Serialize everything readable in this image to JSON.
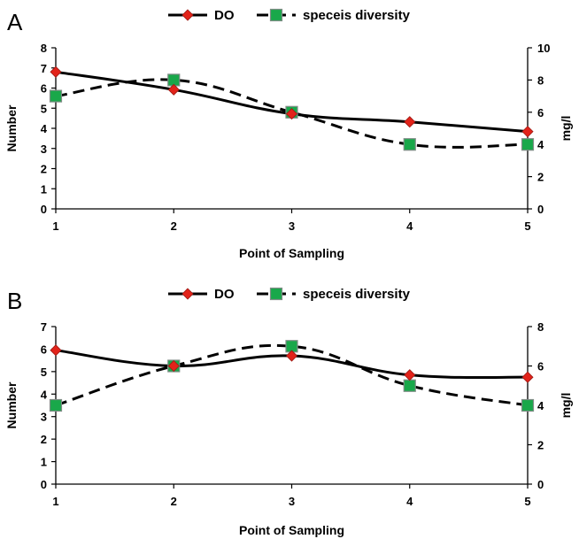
{
  "chart_data": [
    {
      "type": "line",
      "panel_label": "A",
      "x": [
        1,
        2,
        3,
        4,
        5
      ],
      "xlabel": "Point of Sampling",
      "ylabel": "Number",
      "y2label": "mg/l",
      "ylim": [
        0,
        8
      ],
      "y2lim": [
        0,
        10
      ],
      "yticks": [
        0,
        1,
        2,
        3,
        4,
        5,
        6,
        7,
        8
      ],
      "y2ticks": [
        0,
        2,
        4,
        6,
        8,
        10
      ],
      "legend_position": "top",
      "series": [
        {
          "name": "DO",
          "axis": "right",
          "values": [
            8.5,
            7.4,
            5.9,
            5.4,
            4.8
          ],
          "color": "#000000",
          "marker": "diamond",
          "marker_color": "#e2231a",
          "dash": "solid"
        },
        {
          "name": "speceis diversity",
          "axis": "left",
          "values": [
            5.6,
            6.4,
            4.8,
            3.2,
            3.2
          ],
          "color": "#000000",
          "marker": "square",
          "marker_color": "#19a84a",
          "dash": "dashed"
        }
      ]
    },
    {
      "type": "line",
      "panel_label": "B",
      "x": [
        1,
        2,
        3,
        4,
        5
      ],
      "xlabel": "Point of Sampling",
      "ylabel": "Number",
      "y2label": "mg/l",
      "ylim": [
        0,
        7
      ],
      "y2lim": [
        0,
        8
      ],
      "yticks": [
        0,
        1,
        2,
        3,
        4,
        5,
        6,
        7
      ],
      "y2ticks": [
        0,
        2,
        4,
        6,
        8
      ],
      "legend_position": "top",
      "series": [
        {
          "name": "DO",
          "axis": "left",
          "values": [
            5.95,
            5.25,
            5.7,
            4.85,
            4.75
          ],
          "color": "#000000",
          "marker": "diamond",
          "marker_color": "#e2231a",
          "dash": "solid"
        },
        {
          "name": "speceis diversity",
          "axis": "right",
          "values": [
            4.0,
            6.0,
            7.0,
            5.0,
            4.0
          ],
          "color": "#000000",
          "marker": "square",
          "marker_color": "#19a84a",
          "dash": "dashed"
        }
      ]
    }
  ]
}
